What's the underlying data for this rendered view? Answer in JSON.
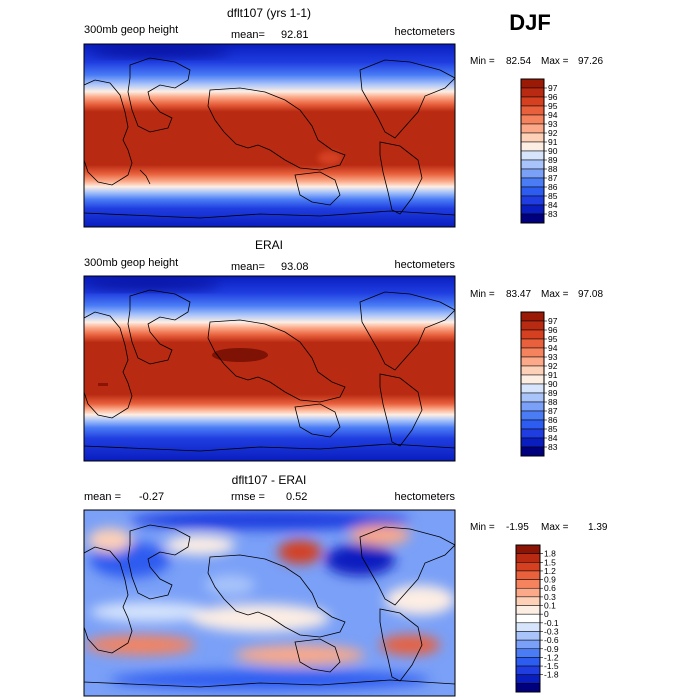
{
  "season": "DJF",
  "colors": {
    "abs": [
      "#00007f",
      "#0a1dbf",
      "#1f3de0",
      "#2d5cf0",
      "#4a7cf5",
      "#7aa0f7",
      "#a9c4fa",
      "#d6e4fc",
      "#fdeee4",
      "#fdd0b8",
      "#fba989",
      "#f4835e",
      "#e8603c",
      "#d44020",
      "#b82a12",
      "#9a1a06"
    ],
    "diff": [
      "#00007f",
      "#0a1dbf",
      "#1f3de0",
      "#2d5cf0",
      "#4a7cf5",
      "#7aa0f7",
      "#a9c4fa",
      "#d6e4fc",
      "#ffffff",
      "#fdeee4",
      "#fdd0b8",
      "#fba989",
      "#f4835e",
      "#e8603c",
      "#d44020",
      "#b82a12",
      "#8b1404"
    ]
  },
  "chart_data": [
    {
      "type": "heatmap",
      "title": "dflt107 (yrs 1-1)",
      "left_label": "300mb geop height",
      "mean_label": "mean=",
      "mean_value": "92.81",
      "units": "hectometers",
      "min_label": "Min =",
      "min_value": "82.54",
      "max_label": "Max =",
      "max_value": "97.26",
      "colorbar_ticks": [
        "97",
        "96",
        "95",
        "94",
        "93",
        "92",
        "91",
        "90",
        "89",
        "88",
        "87",
        "86",
        "85",
        "84",
        "83"
      ]
    },
    {
      "type": "heatmap",
      "title": "ERAI",
      "left_label": "300mb geop height",
      "mean_label": "mean=",
      "mean_value": "93.08",
      "units": "hectometers",
      "min_label": "Min =",
      "min_value": "83.47",
      "max_label": "Max =",
      "max_value": "97.08",
      "colorbar_ticks": [
        "97",
        "96",
        "95",
        "94",
        "93",
        "92",
        "91",
        "90",
        "89",
        "88",
        "87",
        "86",
        "85",
        "84",
        "83"
      ]
    },
    {
      "type": "heatmap",
      "title": "dflt107 - ERAI",
      "mean_label": "mean =",
      "mean_value": "-0.27",
      "rmse_label": "rmse =",
      "rmse_value": "0.52",
      "units": "hectometers",
      "min_label": "Min =",
      "min_value": "-1.95",
      "max_label": "Max =",
      "max_value": "1.39",
      "colorbar_ticks": [
        "1.8",
        "1.5",
        "1.2",
        "0.9",
        "0.6",
        "0.3",
        "0.1",
        "0",
        "-0.1",
        "-0.3",
        "-0.6",
        "-0.9",
        "-1.2",
        "-1.5",
        "-1.8"
      ]
    }
  ]
}
